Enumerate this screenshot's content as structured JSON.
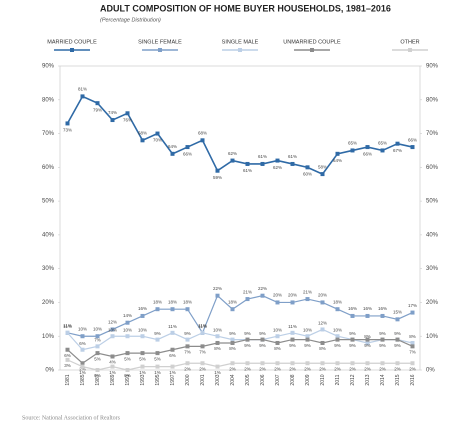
{
  "chart_data": {
    "type": "line",
    "title": "ADULT COMPOSITION OF HOME BUYER HOUSEHOLDS, 1981–2016",
    "subtitle": "(Percentage Distribution)",
    "source": "Source: National Association of Realtors",
    "categories": [
      "1981",
      "1985",
      "1987",
      "1989",
      "1991",
      "1993",
      "1995",
      "1997",
      "2000",
      "2001",
      "2003",
      "2004",
      "2005",
      "2006",
      "2007",
      "2008",
      "2009",
      "2010",
      "2011",
      "2012",
      "2013",
      "2014",
      "2015",
      "2016"
    ],
    "series": [
      {
        "name": "MARRIED COUPLE",
        "color": "#2f6aa6",
        "values": [
          73,
          81,
          79,
          74,
          76,
          68,
          70,
          64,
          66,
          68,
          59,
          62,
          61,
          61,
          62,
          61,
          60,
          58,
          64,
          65,
          66,
          65,
          67,
          66
        ],
        "value_labels": [
          "73%",
          "81%",
          "79%",
          "74%",
          "76%",
          "68%",
          "70%",
          "64%",
          "66%",
          "68%",
          "59%",
          "62%",
          "61%",
          "61%",
          "62%",
          "61%",
          "60%",
          "58%",
          "64%",
          "65%",
          "66%",
          "65%",
          "67%",
          "66%"
        ]
      },
      {
        "name": "SINGLE FEMALE",
        "color": "#7f9fc8",
        "values": [
          11,
          10,
          10,
          12,
          14,
          16,
          18,
          18,
          18,
          11,
          22,
          18,
          21,
          22,
          20,
          20,
          21,
          20,
          18,
          16,
          16,
          16,
          15,
          17
        ],
        "value_labels": [
          "11%",
          "10%",
          "10%",
          "12%",
          "14%",
          "16%",
          "18%",
          "18%",
          "18%",
          "11%",
          "22%",
          "18%",
          "21%",
          "22%",
          "20%",
          "20%",
          "21%",
          "20%",
          "18%",
          "16%",
          "16%",
          "16%",
          "15%",
          "17%"
        ]
      },
      {
        "name": "SINGLE MALE",
        "color": "#bccfe6",
        "values": [
          11,
          6,
          7,
          10,
          10,
          10,
          9,
          11,
          9,
          11,
          10,
          9,
          9,
          9,
          10,
          11,
          10,
          12,
          10,
          9,
          8,
          9,
          9,
          8
        ],
        "value_labels": [
          "11%",
          "6%",
          "7%",
          "10%",
          "10%",
          "10%",
          "9%",
          "11%",
          "9%",
          "11%",
          "10%",
          "9%",
          "9%",
          "9%",
          "10%",
          "11%",
          "10%",
          "12%",
          "10%",
          "9%",
          "8%",
          "9%",
          "9%",
          "8%"
        ]
      },
      {
        "name": "UNMARRIED COUPLE",
        "color": "#8c8c8c",
        "values": [
          6,
          2,
          5,
          4,
          5,
          5,
          5,
          6,
          7,
          7,
          8,
          8,
          9,
          9,
          8,
          9,
          9,
          8,
          9,
          9,
          9,
          9,
          9,
          7
        ],
        "value_labels": [
          "6%",
          "2%",
          "5%",
          "4%",
          "5%",
          "5%",
          "5%",
          "6%",
          "7%",
          "7%",
          "8%",
          "8%",
          "9%",
          "9%",
          "8%",
          "9%",
          "9%",
          "8%",
          "9%",
          "9%",
          "9%",
          "9%",
          "9%",
          "7%"
        ]
      },
      {
        "name": "OTHER",
        "color": "#d0d0d0",
        "values": [
          3,
          1,
          0,
          1,
          0,
          1,
          1,
          1,
          2,
          2,
          1,
          2,
          2,
          2,
          2,
          2,
          2,
          2,
          2,
          2,
          2,
          2,
          2,
          2
        ],
        "value_labels": [
          "3%",
          "1%",
          "0%",
          "1%",
          "0%",
          "1%",
          "1%",
          "1%",
          "2%",
          "2%",
          "1%",
          "2%",
          "2%",
          "2%",
          "2%",
          "2%",
          "2%",
          "2%",
          "2%",
          "2%",
          "2%",
          "2%",
          "2%",
          "2%"
        ]
      }
    ],
    "ylim": [
      0,
      90
    ],
    "yticks": [
      {
        "value": 0,
        "label": "0%"
      },
      {
        "value": 10,
        "label": "10%"
      },
      {
        "value": 20,
        "label": "20%"
      },
      {
        "value": 30,
        "label": "30%"
      },
      {
        "value": 40,
        "label": "40%"
      },
      {
        "value": 50,
        "label": "50%"
      },
      {
        "value": 60,
        "label": "60%"
      },
      {
        "value": 70,
        "label": "70%"
      },
      {
        "value": 80,
        "label": "80%"
      },
      {
        "value": 90,
        "label": "90%"
      }
    ],
    "y2lim": [
      0,
      90
    ],
    "y2ticks": [
      {
        "value": 0,
        "label": "0%"
      },
      {
        "value": 10,
        "label": "10%"
      },
      {
        "value": 20,
        "label": "20%"
      },
      {
        "value": 30,
        "label": "30%"
      },
      {
        "value": 40,
        "label": "40%"
      },
      {
        "value": 50,
        "label": "50%"
      },
      {
        "value": 60,
        "label": "60%"
      },
      {
        "value": 70,
        "label": "70%"
      },
      {
        "value": 80,
        "label": "80%"
      },
      {
        "value": 90,
        "label": "90%"
      }
    ],
    "grid": false
  }
}
